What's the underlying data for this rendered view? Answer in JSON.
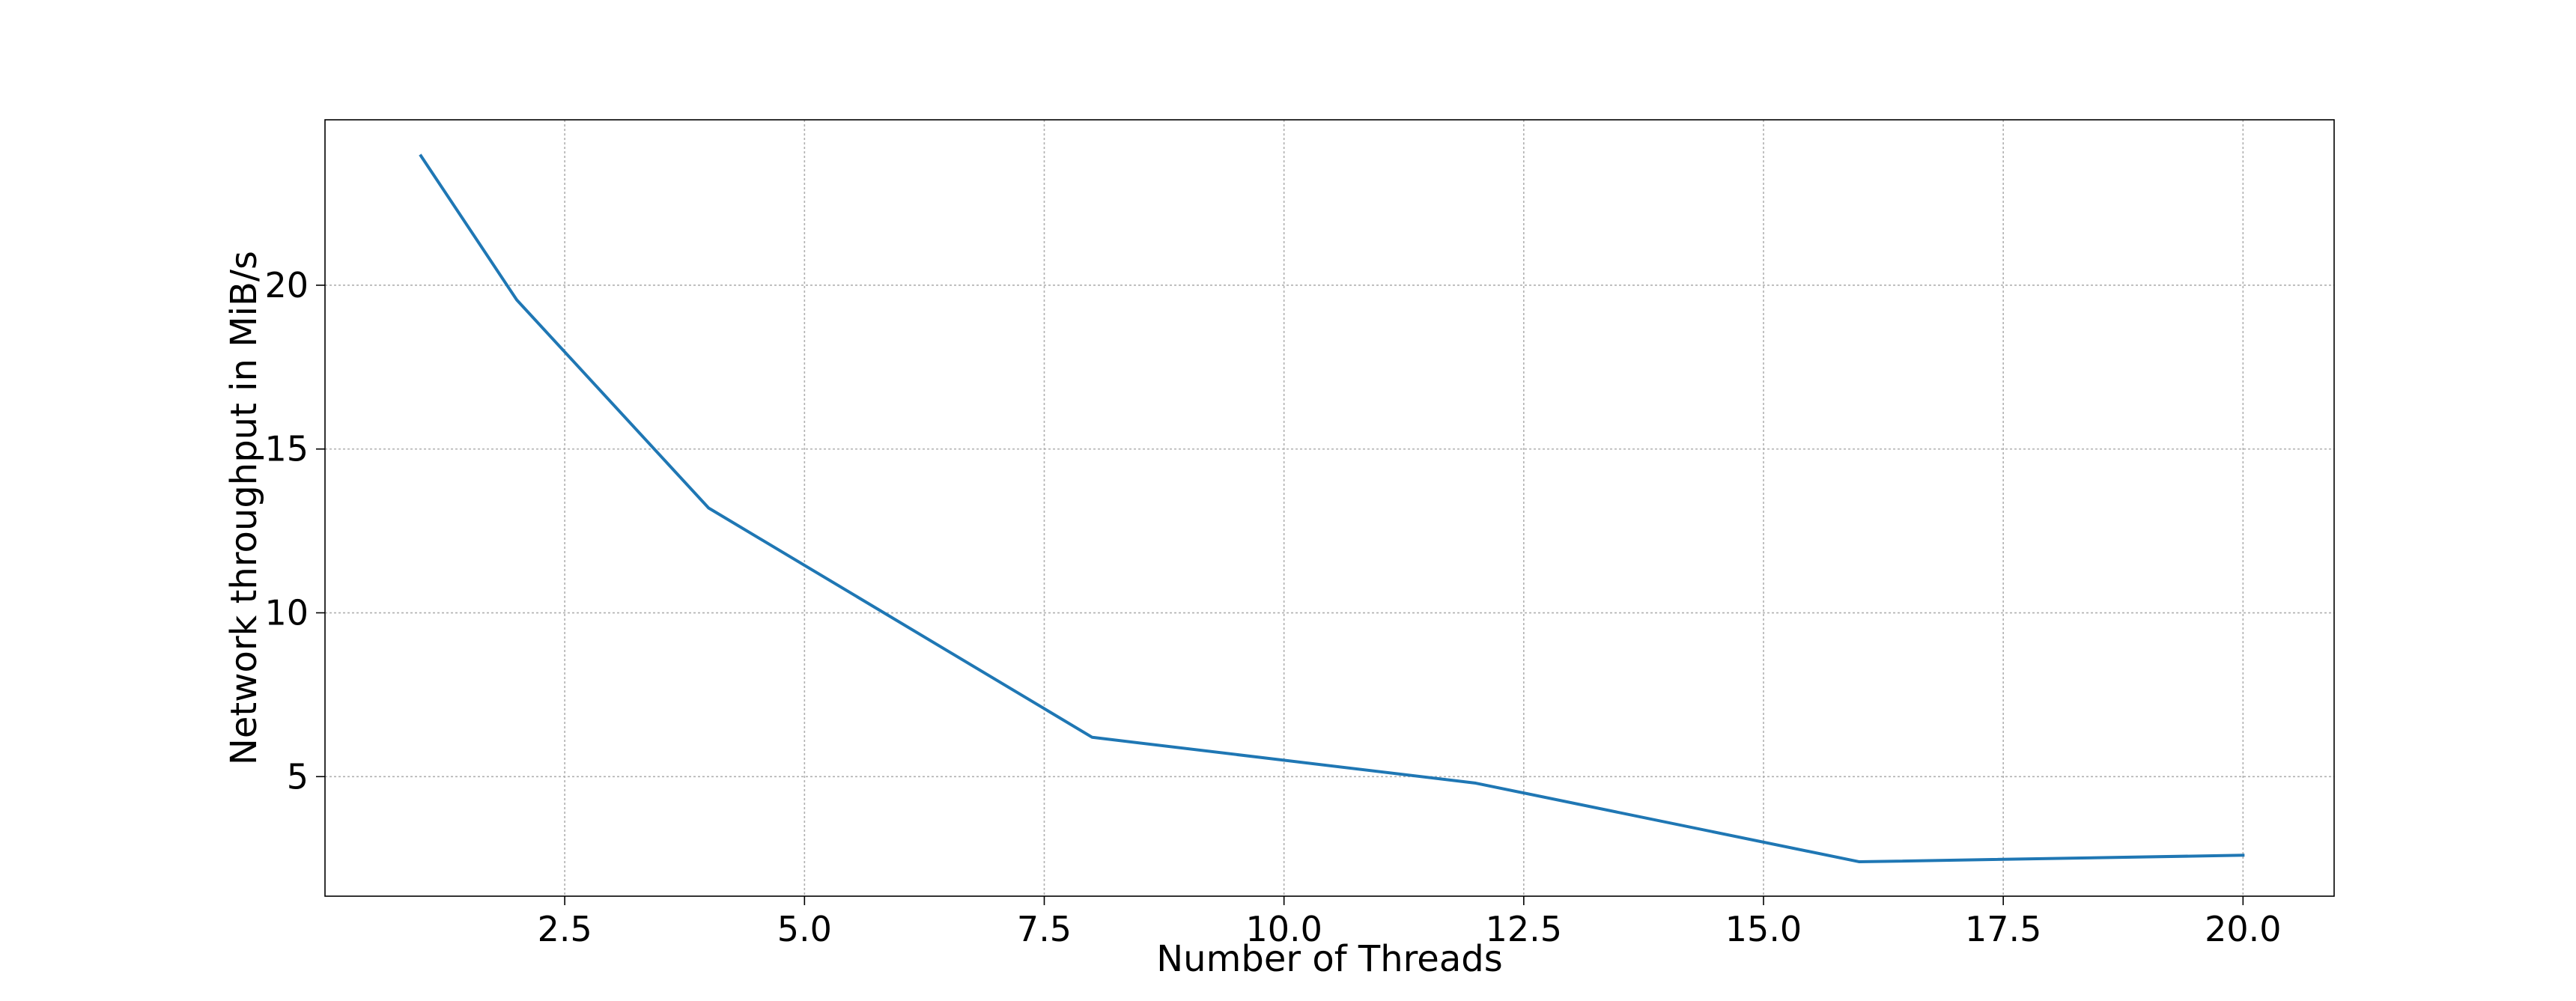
{
  "chart_data": {
    "type": "line",
    "title": "",
    "xlabel": "Number of Threads",
    "ylabel": "Network throughput in MiB/s",
    "xlim": [
      -0.0,
      20.95
    ],
    "ylim": [
      1.35,
      25.05
    ],
    "xticks": [
      2.5,
      5.0,
      7.5,
      10.0,
      12.5,
      15.0,
      17.5,
      20.0
    ],
    "xtick_labels": [
      "2.5",
      "5.0",
      "7.5",
      "10.0",
      "12.5",
      "15.0",
      "17.5",
      "20.0"
    ],
    "yticks": [
      5,
      10,
      15,
      20
    ],
    "ytick_labels": [
      "5",
      "10",
      "15",
      "20"
    ],
    "grid": true,
    "legend": "none",
    "series": [
      {
        "color": "#1f77b4",
        "x": [
          1,
          2,
          4,
          8,
          12,
          16,
          20
        ],
        "y": [
          23.95,
          19.55,
          13.2,
          6.2,
          4.8,
          2.4,
          2.6
        ]
      }
    ]
  }
}
